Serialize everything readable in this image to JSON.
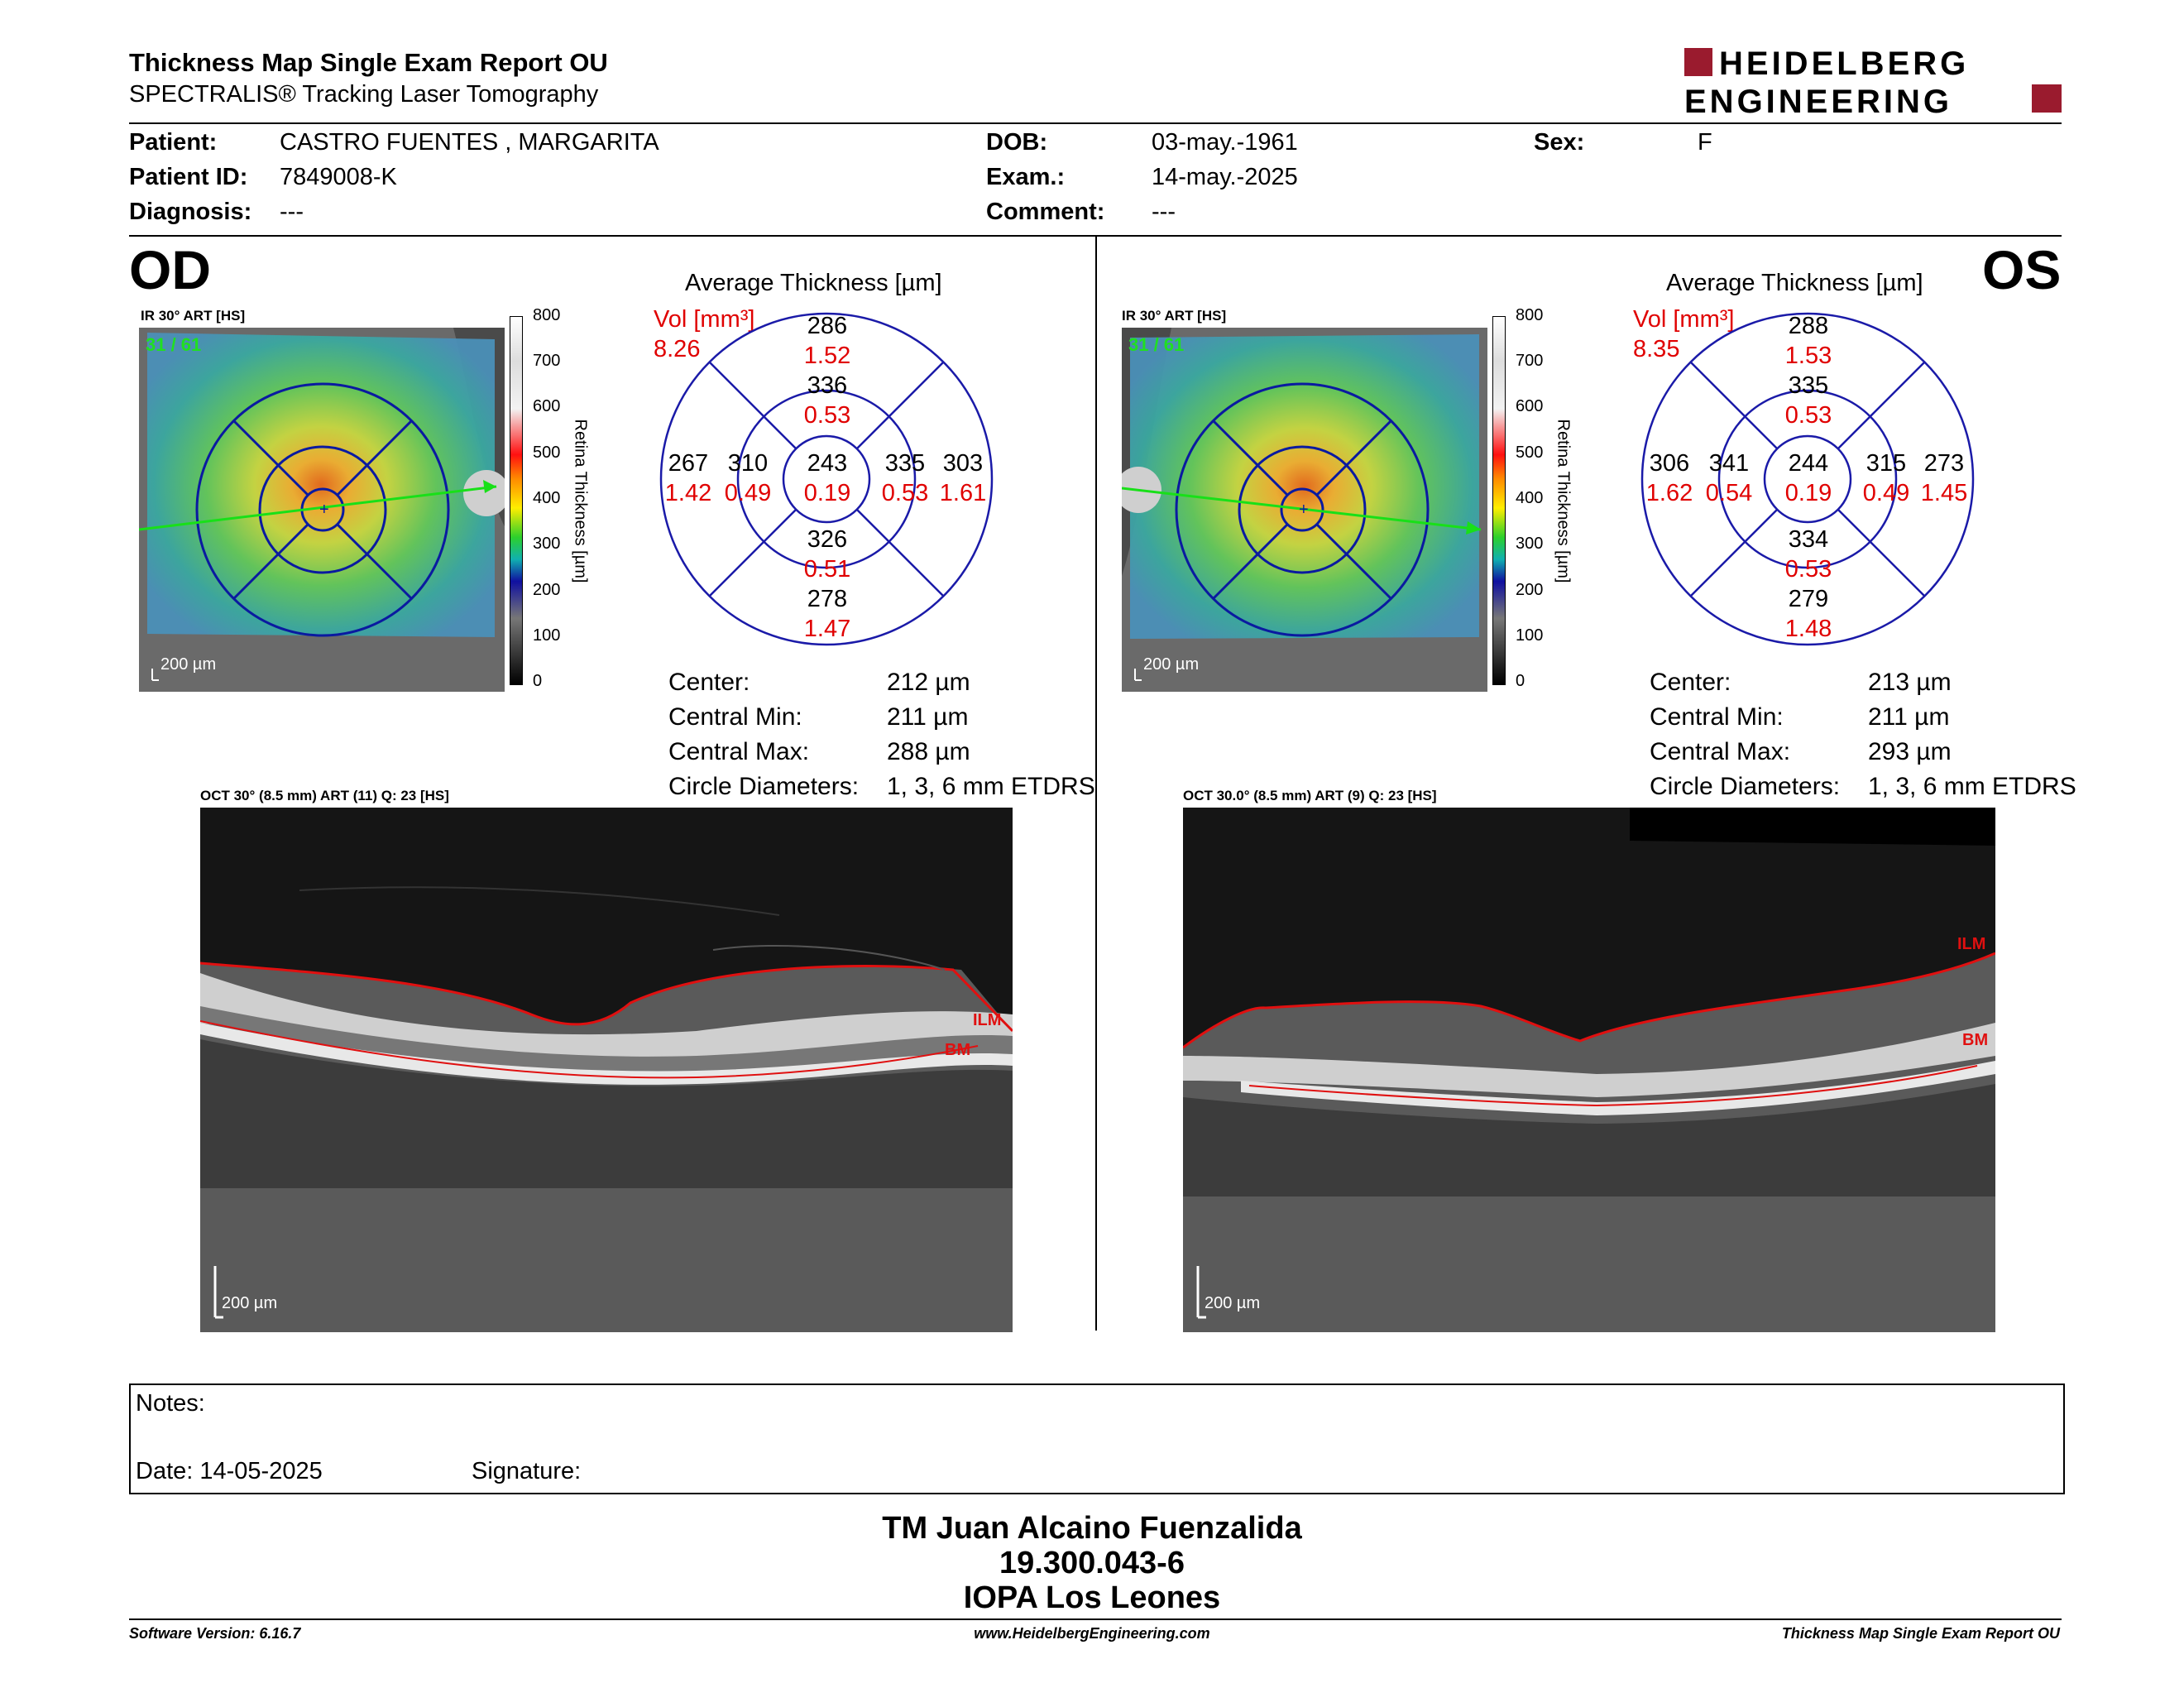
{
  "header": {
    "title": "Thickness Map Single Exam Report OU",
    "subtitle": "SPECTRALIS® Tracking Laser Tomography",
    "logo_line1": "HEIDELBERG",
    "logo_line2": "ENGINEERING",
    "logo_color": "#9a1b2e"
  },
  "patient": {
    "patient_label": "Patient:",
    "patient_value": "CASTRO FUENTES , MARGARITA",
    "id_label": "Patient ID:",
    "id_value": "7849008-K",
    "diag_label": "Diagnosis:",
    "diag_value": "---",
    "dob_label": "DOB:",
    "dob_value": "03-may.-1961",
    "exam_label": "Exam.:",
    "exam_value": "14-may.-2025",
    "comment_label": "Comment:",
    "comment_value": "---",
    "sex_label": "Sex:",
    "sex_value": "F"
  },
  "od": {
    "eye": "OD",
    "ir_label": "IR 30° ART [HS]",
    "frames": "31 / 61",
    "scale_text": "200 µm",
    "avg_title": "Average Thickness [µm]",
    "vol_label": "Vol [mm³]",
    "vol_value": "8.26",
    "sectors": {
      "outer_top": {
        "t": "286",
        "v": "1.52"
      },
      "inner_top": {
        "t": "336",
        "v": "0.53"
      },
      "outer_left": {
        "t": "267",
        "v": "1.42"
      },
      "inner_left": {
        "t": "310",
        "v": "0.49"
      },
      "center": {
        "t": "243",
        "v": "0.19"
      },
      "inner_right": {
        "t": "335",
        "v": "0.53"
      },
      "outer_right": {
        "t": "303",
        "v": "1.61"
      },
      "inner_bottom": {
        "t": "326",
        "v": "0.51"
      },
      "outer_bottom": {
        "t": "278",
        "v": "1.47"
      }
    },
    "stats": {
      "center_label": "Center:",
      "center_value": "212 µm",
      "min_label": "Central Min:",
      "min_value": "211 µm",
      "max_label": "Central Max:",
      "max_value": "288 µm",
      "diam_label": "Circle Diameters:",
      "diam_value": "1, 3, 6 mm ETDRS"
    },
    "oct_label": "OCT 30° (8.5 mm) ART (11) Q: 23 [HS]",
    "oct_scale": "200 µm",
    "ilm": "ILM",
    "bm": "BM"
  },
  "os": {
    "eye": "OS",
    "ir_label": "IR 30° ART [HS]",
    "frames": "31 / 61",
    "scale_text": "200 µm",
    "avg_title": "Average Thickness [µm]",
    "vol_label": "Vol [mm³]",
    "vol_value": "8.35",
    "sectors": {
      "outer_top": {
        "t": "288",
        "v": "1.53"
      },
      "inner_top": {
        "t": "335",
        "v": "0.53"
      },
      "outer_left": {
        "t": "306",
        "v": "1.62"
      },
      "inner_left": {
        "t": "341",
        "v": "0.54"
      },
      "center": {
        "t": "244",
        "v": "0.19"
      },
      "inner_right": {
        "t": "315",
        "v": "0.49"
      },
      "outer_right": {
        "t": "273",
        "v": "1.45"
      },
      "inner_bottom": {
        "t": "334",
        "v": "0.53"
      },
      "outer_bottom": {
        "t": "279",
        "v": "1.48"
      }
    },
    "stats": {
      "center_label": "Center:",
      "center_value": "213 µm",
      "min_label": "Central Min:",
      "min_value": "211 µm",
      "max_label": "Central Max:",
      "max_value": "293 µm",
      "diam_label": "Circle Diameters:",
      "diam_value": "1, 3, 6 mm ETDRS"
    },
    "oct_label": "OCT 30.0° (8.5 mm) ART (9) Q: 23 [HS]",
    "oct_scale": "200 µm",
    "ilm": "ILM",
    "bm": "BM"
  },
  "colorbar": {
    "ticks": [
      "800",
      "700",
      "600",
      "500",
      "400",
      "300",
      "200",
      "100",
      "0"
    ],
    "title": "Retina Thickness [µm]"
  },
  "notes": {
    "notes_label": "Notes:",
    "date_label": "Date: 14-05-2025",
    "signature_label": "Signature:"
  },
  "signer": {
    "line1": "TM Juan Alcaino Fuenzalida",
    "line2": "19.300.043-6",
    "line3": "IOPA Los Leones"
  },
  "footer": {
    "software": "Software Version: 6.16.7",
    "website": "www.HeidelbergEngineering.com",
    "report": "Thickness Map Single Exam Report OU"
  }
}
